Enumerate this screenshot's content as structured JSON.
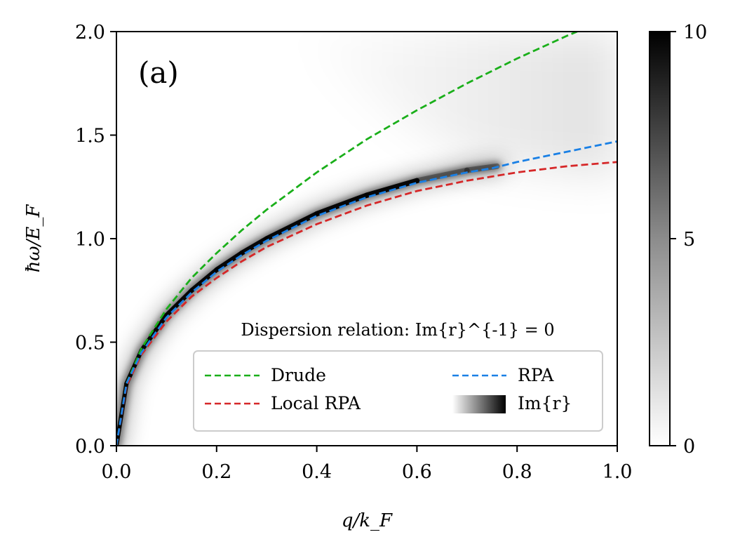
{
  "chart_data": {
    "type": "line",
    "panel_label": "(a)",
    "xlabel": "q/k_F",
    "ylabel": "ħω/E_F",
    "xlim": [
      0.0,
      1.0
    ],
    "ylim": [
      0.0,
      2.0
    ],
    "xticks": [
      0.0,
      0.2,
      0.4,
      0.6,
      0.8,
      1.0
    ],
    "yticks": [
      0.0,
      0.5,
      1.0,
      1.5,
      2.0
    ],
    "xtick_labels": [
      "0.0",
      "0.2",
      "0.4",
      "0.6",
      "0.8",
      "1.0"
    ],
    "ytick_labels": [
      "0.0",
      "0.5",
      "1.0",
      "1.5",
      "2.0"
    ],
    "grid": false,
    "series": [
      {
        "name": "Drude",
        "color": "#1aaf1a",
        "style": "dashed",
        "x": [
          0.0,
          0.02,
          0.05,
          0.1,
          0.15,
          0.2,
          0.25,
          0.3,
          0.4,
          0.5,
          0.6,
          0.7,
          0.8,
          0.9,
          0.92
        ],
        "y": [
          0.0,
          0.3,
          0.47,
          0.66,
          0.81,
          0.93,
          1.04,
          1.14,
          1.32,
          1.48,
          1.62,
          1.75,
          1.87,
          1.98,
          2.0
        ]
      },
      {
        "name": "Local RPA",
        "color": "#d62728",
        "style": "dashed",
        "x": [
          0.0,
          0.02,
          0.05,
          0.1,
          0.15,
          0.2,
          0.25,
          0.3,
          0.4,
          0.5,
          0.6,
          0.7,
          0.8,
          0.9,
          1.0
        ],
        "y": [
          0.0,
          0.29,
          0.44,
          0.6,
          0.72,
          0.81,
          0.89,
          0.96,
          1.07,
          1.16,
          1.23,
          1.28,
          1.32,
          1.35,
          1.37
        ]
      },
      {
        "name": "RPA",
        "color": "#1a80e5",
        "style": "dashed",
        "x": [
          0.0,
          0.02,
          0.05,
          0.1,
          0.15,
          0.2,
          0.25,
          0.3,
          0.4,
          0.5,
          0.6,
          0.7,
          0.75,
          0.8,
          0.9,
          1.0
        ],
        "y": [
          0.0,
          0.3,
          0.45,
          0.62,
          0.74,
          0.84,
          0.92,
          0.99,
          1.11,
          1.2,
          1.27,
          1.32,
          1.34,
          1.37,
          1.42,
          1.47
        ]
      }
    ],
    "heatmap": {
      "name": "Im{r}",
      "colormap": "gray_r",
      "color_range": [
        0,
        10
      ],
      "colorbar_ticks": [
        0,
        5,
        10
      ],
      "colorbar_tick_labels": [
        "0",
        "5",
        "10"
      ],
      "ridge_x": [
        0.0,
        0.02,
        0.05,
        0.1,
        0.15,
        0.2,
        0.25,
        0.3,
        0.4,
        0.5,
        0.6,
        0.7,
        0.76
      ],
      "ridge_y": [
        0.0,
        0.3,
        0.46,
        0.63,
        0.75,
        0.85,
        0.93,
        1.0,
        1.12,
        1.21,
        1.28,
        1.33,
        1.35
      ]
    },
    "legend": {
      "title": "Dispersion relation: Im{r}^{-1} = 0",
      "placement": "lower-right",
      "columns": 2,
      "entries": [
        "Drude",
        "Local RPA",
        "RPA",
        "Im{r}"
      ]
    }
  }
}
